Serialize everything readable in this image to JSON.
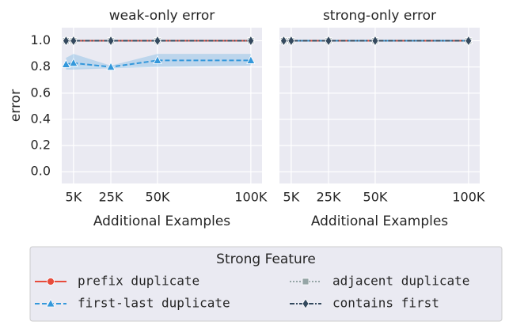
{
  "chart_data": [
    {
      "type": "line",
      "title": "weak-only error",
      "xlabel": "Additional Examples",
      "ylabel": "error",
      "legend_title": "Strong Feature",
      "x": [
        1000,
        5000,
        25000,
        50000,
        100000
      ],
      "xlim": [
        -1300,
        106000
      ],
      "ylim": [
        -0.09,
        1.1
      ],
      "xticks": [
        {
          "value": 5000,
          "label": "5K"
        },
        {
          "value": 25000,
          "label": "25K"
        },
        {
          "value": 50000,
          "label": "50K"
        },
        {
          "value": 100000,
          "label": "100K"
        }
      ],
      "yticks": [
        {
          "value": 0,
          "label": "0.0"
        },
        0.2,
        0.4,
        0.6,
        0.8,
        {
          "value": 1,
          "label": "1.0"
        }
      ],
      "grid": true,
      "series": [
        {
          "name": "prefix duplicate",
          "color": "#e74c3c",
          "marker": "circle",
          "dash": "solid",
          "values": [
            1,
            1,
            1,
            1,
            1
          ]
        },
        {
          "name": "first-last duplicate",
          "color": "#3498db",
          "marker": "triangle",
          "dash": "dashed",
          "values": [
            0.82,
            0.83,
            0.8,
            0.85,
            0.85
          ],
          "ci_lower": [
            0.78,
            0.78,
            0.79,
            0.8,
            0.81
          ],
          "ci_upper": [
            0.87,
            0.9,
            0.81,
            0.9,
            0.9
          ]
        },
        {
          "name": "adjacent duplicate",
          "color": "#95a5a6",
          "marker": "square",
          "dash": "dotted",
          "values": [
            1,
            1,
            1,
            1,
            1
          ]
        },
        {
          "name": "contains first",
          "color": "#34495e",
          "marker": "diamond",
          "dash": "dashdot",
          "values": [
            1,
            1,
            1,
            1,
            1
          ]
        }
      ]
    },
    {
      "type": "line",
      "title": "strong-only error",
      "xlabel": "Additional Examples",
      "x": [
        1000,
        5000,
        25000,
        50000,
        100000
      ],
      "xlim": [
        -1300,
        106000
      ],
      "ylim": [
        -0.09,
        1.1
      ],
      "xticks": [
        {
          "value": 5000,
          "label": "5K"
        },
        {
          "value": 25000,
          "label": "25K"
        },
        {
          "value": 50000,
          "label": "50K"
        },
        {
          "value": 100000,
          "label": "100K"
        }
      ],
      "yticks": [
        {
          "value": 0,
          "label": "0.0"
        },
        0.2,
        0.4,
        0.6,
        0.8,
        {
          "value": 1,
          "label": "1.0"
        }
      ],
      "grid": true,
      "series": [
        {
          "name": "prefix duplicate",
          "color": "#e74c3c",
          "marker": "circle",
          "dash": "solid",
          "values": [
            1,
            1,
            1,
            1,
            1
          ]
        },
        {
          "name": "first-last duplicate",
          "color": "#3498db",
          "marker": "triangle",
          "dash": "dashed",
          "values": [
            1,
            1,
            1,
            1,
            1
          ]
        },
        {
          "name": "adjacent duplicate",
          "color": "#95a5a6",
          "marker": "square",
          "dash": "dotted",
          "values": [
            1,
            1,
            1,
            1,
            1
          ]
        },
        {
          "name": "contains first",
          "color": "#34495e",
          "marker": "diamond",
          "dash": "dashdot",
          "values": [
            1,
            1,
            1,
            1,
            1
          ]
        }
      ]
    }
  ]
}
